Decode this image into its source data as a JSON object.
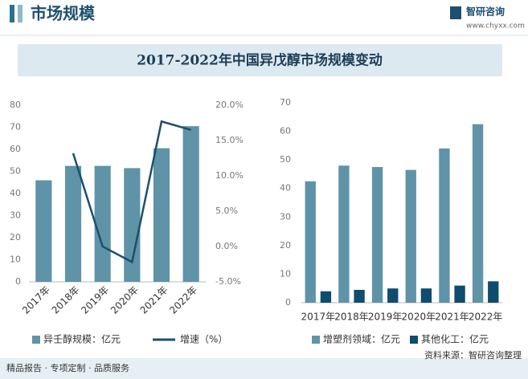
{
  "header": {
    "title": "市场规模",
    "logo": "智研咨询",
    "url": "www.chyxx.com"
  },
  "title": "2017-2022年中国异戊醇市场规模变动",
  "chart_data": [
    {
      "type": "bar",
      "categories": [
        "2017年",
        "2018年",
        "2019年",
        "2020年",
        "2021年",
        "2022年"
      ],
      "series": [
        {
          "name": "异壬醇规模：亿元",
          "color": "#5f93a8",
          "values": [
            46,
            52.5,
            52.5,
            51.5,
            60.5,
            70.5
          ]
        },
        {
          "name": "增速（%）",
          "type": "line",
          "axis": "y2",
          "color": "#1d4f6e",
          "values": [
            null,
            13.2,
            0,
            -2.2,
            17.7,
            16.5
          ]
        }
      ],
      "ylim": [
        0,
        80
      ],
      "yticks": [
        0,
        10,
        20,
        30,
        40,
        50,
        60,
        70,
        80
      ],
      "y2lim": [
        -5,
        20
      ],
      "y2ticks": [
        {
          "value": -5,
          "label": "-5.0%"
        },
        {
          "value": 0,
          "label": "0.0%"
        },
        {
          "value": 5,
          "label": "5.0%"
        },
        {
          "value": 10,
          "label": "10.0%"
        },
        {
          "value": 15,
          "label": "15.0%"
        },
        {
          "value": 20,
          "label": "20.0%"
        }
      ]
    },
    {
      "type": "bar",
      "categories": [
        "2017年",
        "2018年",
        "2019年",
        "2020年",
        "2021年",
        "2022年"
      ],
      "series": [
        {
          "name": "增塑剂领域：亿元",
          "color": "#5f93a8",
          "values": [
            42.5,
            48,
            47.5,
            46.5,
            54,
            62.5
          ]
        },
        {
          "name": "其他化工：亿元",
          "color": "#0e4d6e",
          "values": [
            4,
            4.5,
            5,
            5,
            6,
            7.5
          ]
        }
      ],
      "ylim": [
        0,
        70
      ],
      "yticks": [
        0,
        10,
        20,
        30,
        40,
        50,
        60,
        70
      ]
    }
  ],
  "footer": {
    "slogan": "精品报告 · 专项定制 · 品质服务",
    "source": "资料来源：智研咨询整理"
  }
}
